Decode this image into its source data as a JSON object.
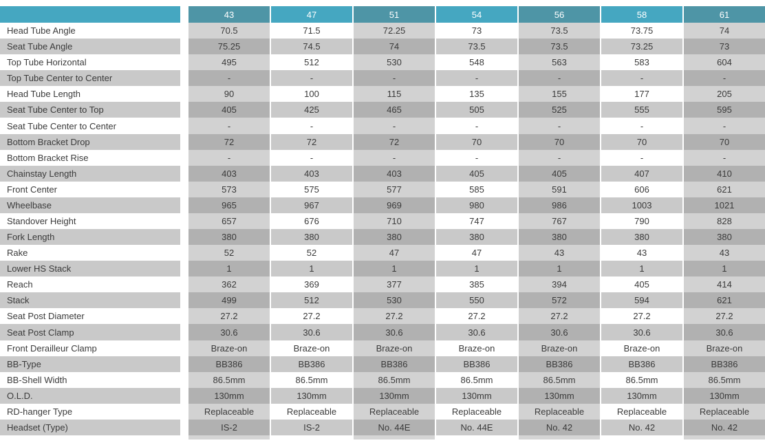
{
  "table": {
    "title": "bike-geometry-spec-table",
    "header": {
      "corner_label": "",
      "sizes": [
        "43",
        "47",
        "51",
        "54",
        "56",
        "58",
        "61"
      ]
    },
    "shaded_column_indices": [
      0,
      2,
      4,
      6
    ],
    "rows": [
      {
        "label": "Head Tube Angle",
        "values": [
          "70.5",
          "71.5",
          "72.25",
          "73",
          "73.5",
          "73.75",
          "74"
        ]
      },
      {
        "label": "Seat Tube Angle",
        "values": [
          "75.25",
          "74.5",
          "74",
          "73.5",
          "73.5",
          "73.25",
          "73"
        ]
      },
      {
        "label": "Top Tube Horizontal",
        "values": [
          "495",
          "512",
          "530",
          "548",
          "563",
          "583",
          "604"
        ]
      },
      {
        "label": "Top Tube Center to Center",
        "values": [
          "-",
          "-",
          "-",
          "-",
          "-",
          "-",
          "-"
        ]
      },
      {
        "label": "Head Tube Length",
        "values": [
          "90",
          "100",
          "115",
          "135",
          "155",
          "177",
          "205"
        ]
      },
      {
        "label": "Seat Tube Center to Top",
        "values": [
          "405",
          "425",
          "465",
          "505",
          "525",
          "555",
          "595"
        ]
      },
      {
        "label": "Seat Tube Center to Center",
        "values": [
          "-",
          "-",
          "-",
          "-",
          "-",
          "-",
          "-"
        ]
      },
      {
        "label": "Bottom Bracket Drop",
        "values": [
          "72",
          "72",
          "72",
          "70",
          "70",
          "70",
          "70"
        ]
      },
      {
        "label": "Bottom Bracket Rise",
        "values": [
          "-",
          "-",
          "-",
          "-",
          "-",
          "-",
          "-"
        ]
      },
      {
        "label": "Chainstay Length",
        "values": [
          "403",
          "403",
          "403",
          "405",
          "405",
          "407",
          "410"
        ]
      },
      {
        "label": "Front Center",
        "values": [
          "573",
          "575",
          "577",
          "585",
          "591",
          "606",
          "621"
        ]
      },
      {
        "label": "Wheelbase",
        "values": [
          "965",
          "967",
          "969",
          "980",
          "986",
          "1003",
          "1021"
        ]
      },
      {
        "label": "Standover Height",
        "values": [
          "657",
          "676",
          "710",
          "747",
          "767",
          "790",
          "828"
        ]
      },
      {
        "label": "Fork Length",
        "values": [
          "380",
          "380",
          "380",
          "380",
          "380",
          "380",
          "380"
        ]
      },
      {
        "label": "Rake",
        "values": [
          "52",
          "52",
          "47",
          "47",
          "43",
          "43",
          "43"
        ]
      },
      {
        "label": "Lower HS Stack",
        "values": [
          "1",
          "1",
          "1",
          "1",
          "1",
          "1",
          "1"
        ]
      },
      {
        "label": "Reach",
        "values": [
          "362",
          "369",
          "377",
          "385",
          "394",
          "405",
          "414"
        ]
      },
      {
        "label": "Stack",
        "values": [
          "499",
          "512",
          "530",
          "550",
          "572",
          "594",
          "621"
        ]
      },
      {
        "label": "Seat Post Diameter",
        "values": [
          "27.2",
          "27.2",
          "27.2",
          "27.2",
          "27.2",
          "27.2",
          "27.2"
        ]
      },
      {
        "label": "Seat Post Clamp",
        "values": [
          "30.6",
          "30.6",
          "30.6",
          "30.6",
          "30.6",
          "30.6",
          "30.6"
        ]
      },
      {
        "label": "Front Derailleur Clamp",
        "values": [
          "Braze-on",
          "Braze-on",
          "Braze-on",
          "Braze-on",
          "Braze-on",
          "Braze-on",
          "Braze-on"
        ]
      },
      {
        "label": "BB-Type",
        "values": [
          "BB386",
          "BB386",
          "BB386",
          "BB386",
          "BB386",
          "BB386",
          "BB386"
        ]
      },
      {
        "label": "BB-Shell Width",
        "values": [
          "86.5mm",
          "86.5mm",
          "86.5mm",
          "86.5mm",
          "86.5mm",
          "86.5mm",
          "86.5mm"
        ]
      },
      {
        "label": "O.L.D.",
        "values": [
          "130mm",
          "130mm",
          "130mm",
          "130mm",
          "130mm",
          "130mm",
          "130mm"
        ]
      },
      {
        "label": "RD-hanger Type",
        "values": [
          "Replaceable",
          "Replaceable",
          "Replaceable",
          "Replaceable",
          "Replaceable",
          "Replaceable",
          "Replaceable"
        ]
      },
      {
        "label": "Headset (Type)",
        "values": [
          "IS-2",
          "IS-2",
          "No. 44E",
          "No. 44E",
          "No. 42",
          "No. 42",
          "No. 42"
        ]
      }
    ],
    "colors": {
      "header_teal": "#45a7c1",
      "header_teal_shaded": "#4e95a6",
      "header_text": "#ffffff",
      "row_white": "#ffffff",
      "row_gray": "#c9c9c9",
      "shade_on_white": "#d2d2d2",
      "shade_on_gray": "#b1b1b1",
      "footer_shade": "#d5d5d5",
      "body_text": "#3a3a3a"
    }
  }
}
